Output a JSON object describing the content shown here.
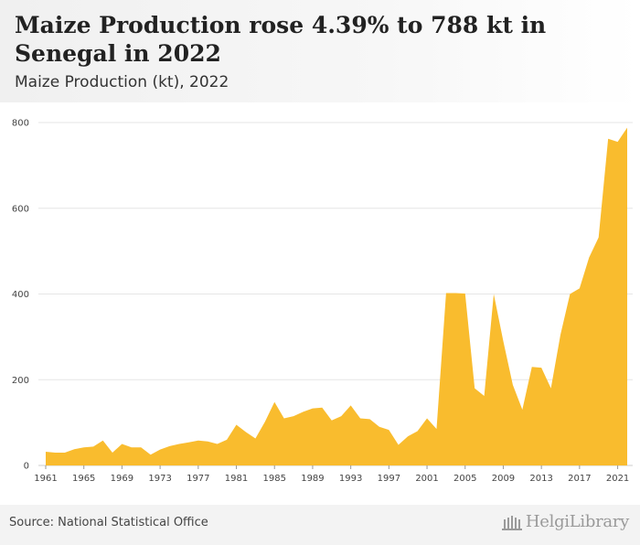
{
  "header": {
    "title": "Maize Production rose 4.39% to 788 kt in Senegal in 2022",
    "subtitle": "Maize Production (kt), 2022"
  },
  "footer": {
    "source": "Source: National Statistical Office",
    "logo_text": "HelgiLibrary"
  },
  "colors": {
    "area_fill": "#f9bc2e",
    "grid": "#e6e6e6",
    "axis_text": "#444444"
  },
  "chart_data": {
    "type": "area",
    "title": "Maize Production rose 4.39% to 788 kt in Senegal in 2022",
    "subtitle": "Maize Production (kt), 2022",
    "xlabel": "",
    "ylabel": "",
    "ylim": [
      0,
      800
    ],
    "xlim": [
      1961,
      2022
    ],
    "y_ticks": [
      0,
      200,
      400,
      600,
      800
    ],
    "x_ticks": [
      1961,
      1965,
      1969,
      1973,
      1977,
      1981,
      1985,
      1989,
      1993,
      1997,
      2001,
      2005,
      2009,
      2013,
      2017,
      2021
    ],
    "grid": "horizontal",
    "x": [
      1961,
      1962,
      1963,
      1964,
      1965,
      1966,
      1967,
      1968,
      1969,
      1970,
      1971,
      1972,
      1973,
      1974,
      1975,
      1976,
      1977,
      1978,
      1979,
      1980,
      1981,
      1982,
      1983,
      1984,
      1985,
      1986,
      1987,
      1988,
      1989,
      1990,
      1991,
      1992,
      1993,
      1994,
      1995,
      1996,
      1997,
      1998,
      1999,
      2000,
      2001,
      2002,
      2003,
      2004,
      2005,
      2006,
      2007,
      2008,
      2009,
      2010,
      2011,
      2012,
      2013,
      2014,
      2015,
      2016,
      2017,
      2018,
      2019,
      2020,
      2021,
      2022
    ],
    "values": [
      32,
      30,
      30,
      38,
      42,
      44,
      58,
      30,
      50,
      42,
      42,
      25,
      37,
      45,
      50,
      54,
      58,
      56,
      50,
      60,
      95,
      78,
      63,
      102,
      148,
      110,
      115,
      125,
      133,
      135,
      105,
      115,
      140,
      110,
      108,
      90,
      83,
      48,
      68,
      80,
      110,
      85,
      402,
      402,
      401,
      180,
      162,
      400,
      290,
      188,
      130,
      230,
      228,
      180,
      305,
      400,
      413,
      485,
      532,
      762,
      755,
      788
    ]
  }
}
